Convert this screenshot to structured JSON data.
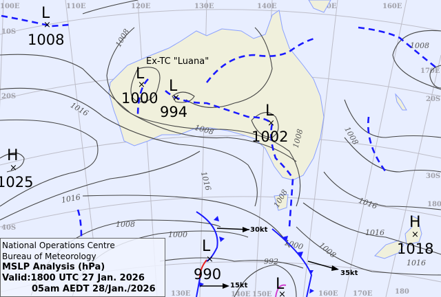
{
  "grid": {
    "longitudes": [
      "100E",
      "110E",
      "120E",
      "130E",
      "140E",
      "150E",
      "160E"
    ],
    "latitudes_left": [
      "10S",
      "20S",
      "30S",
      "40S"
    ],
    "latitudes_right": [
      "20S",
      "30S"
    ],
    "bottom_longitudes": [
      "130E",
      "140E",
      "150E",
      "160E",
      "170E",
      "180"
    ],
    "right_labels": [
      "170E",
      "180"
    ]
  },
  "systems": [
    {
      "type": "L",
      "pressure": "1008"
    },
    {
      "type": "L",
      "pressure": "1000",
      "note": "Ex-TC \"Luana\""
    },
    {
      "type": "L",
      "pressure": "994"
    },
    {
      "type": "L",
      "pressure": "1002"
    },
    {
      "type": "H",
      "pressure": "1025"
    },
    {
      "type": "L",
      "pressure": "990"
    },
    {
      "type": "H",
      "pressure": "1018"
    },
    {
      "type": "L",
      "pressure": ""
    }
  ],
  "isobar_labels": [
    "1008",
    "1016",
    "1008",
    "1008",
    "1016",
    "1016",
    "1008",
    "1016",
    "1008",
    "1000",
    "992",
    "1008",
    "1000",
    "1008",
    "1016",
    "1016",
    "1008"
  ],
  "winds": [
    "30kt",
    "35kt",
    "15kt"
  ],
  "info": {
    "line1": "National Operations Centre",
    "line2": "Bureau of Meteorology",
    "title": "MSLP Analysis (hPa)",
    "valid_utc": "Valid:1800 UTC 27 Jan. 2026",
    "valid_local": "05am AEDT 28/Jan./2026"
  },
  "colors": {
    "sea": "#e8eeff",
    "land": "#f0f0dc",
    "trough": "#1a1aff",
    "cold_front": "#1a1aff",
    "warm_front": "#e8201c",
    "occluded": "#d040d0",
    "isobar": "#444444"
  }
}
